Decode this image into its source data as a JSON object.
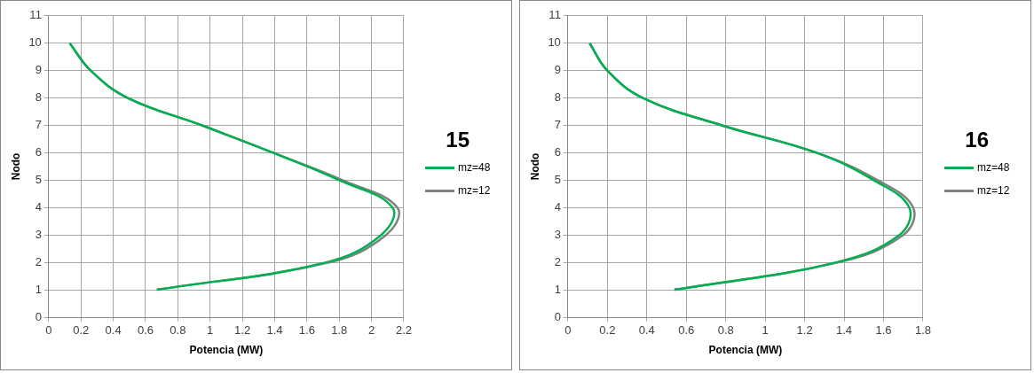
{
  "chart_data": [
    {
      "type": "line",
      "legend_title": "15",
      "xlabel": "Potencia (MW)",
      "ylabel": "Nodo",
      "legend": "right",
      "grid": true,
      "marker": "none",
      "line_style": "solid",
      "xlim": [
        0,
        2.2
      ],
      "xticks": [
        0,
        0.2,
        0.4,
        0.6,
        0.8,
        1,
        1.2,
        1.4,
        1.6,
        1.8,
        2,
        2.2
      ],
      "ylim": [
        0,
        11
      ],
      "yticks": [
        0,
        1,
        2,
        3,
        4,
        5,
        6,
        7,
        8,
        9,
        10,
        11
      ],
      "series": [
        {
          "name": "mz=48",
          "color": "#00b050",
          "x": [
            0.67,
            1.72,
            2.06,
            2.13,
            1.8,
            1.39,
            0.95,
            0.49,
            0.26,
            0.13
          ],
          "values": [
            1,
            2,
            3,
            4,
            5,
            6,
            7,
            8,
            9,
            10
          ]
        },
        {
          "name": "mz=12",
          "color": "#808080",
          "x": [
            0.67,
            1.74,
            2.09,
            2.16,
            1.82,
            1.39,
            0.95,
            0.49,
            0.26,
            0.13
          ],
          "values": [
            1,
            2,
            3,
            4,
            5,
            6,
            7,
            8,
            9,
            10
          ]
        }
      ]
    },
    {
      "type": "line",
      "legend_title": "16",
      "xlabel": "Potencia (MW)",
      "ylabel": "Nodo",
      "legend": "right",
      "grid": true,
      "marker": "none",
      "line_style": "solid",
      "xlim": [
        0,
        1.8
      ],
      "xticks": [
        0,
        0.2,
        0.4,
        0.6,
        0.8,
        1,
        1.2,
        1.4,
        1.6,
        1.8
      ],
      "ylim": [
        0,
        11
      ],
      "yticks": [
        0,
        1,
        2,
        3,
        4,
        5,
        6,
        7,
        8,
        9,
        10,
        11
      ],
      "series": [
        {
          "name": "mz=48",
          "color": "#00b050",
          "x": [
            0.54,
            1.36,
            1.68,
            1.73,
            1.55,
            1.26,
            0.78,
            0.38,
            0.2,
            0.11
          ],
          "values": [
            1,
            2,
            3,
            4,
            5,
            6,
            7,
            8,
            9,
            10
          ]
        },
        {
          "name": "mz=12",
          "color": "#808080",
          "x": [
            0.54,
            1.37,
            1.7,
            1.75,
            1.57,
            1.26,
            0.78,
            0.38,
            0.2,
            0.11
          ],
          "values": [
            1,
            2,
            3,
            4,
            5,
            6,
            7,
            8,
            9,
            10
          ]
        }
      ]
    }
  ]
}
